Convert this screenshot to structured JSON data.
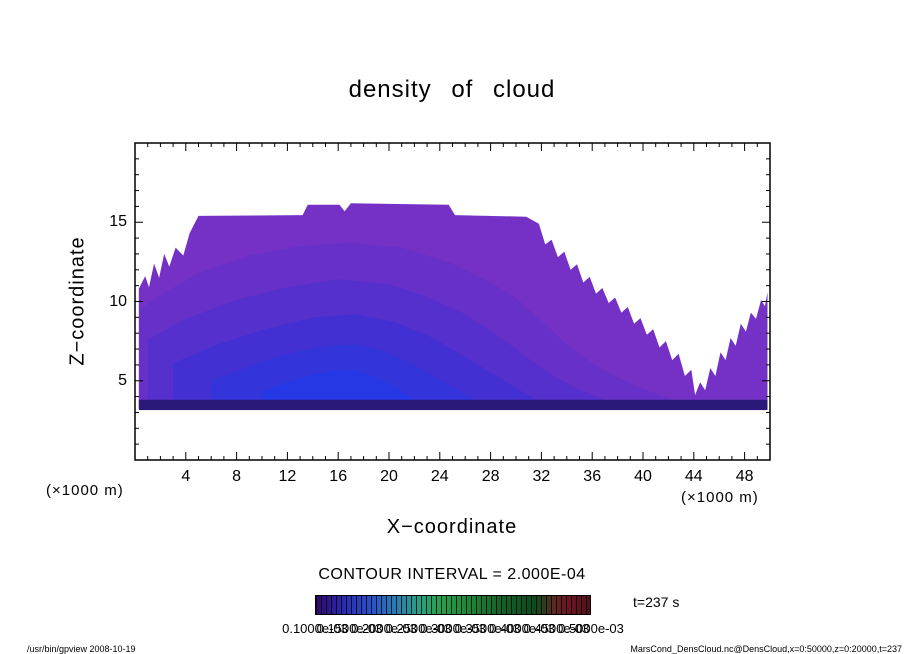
{
  "title": "density of cloud",
  "axes": {
    "x_label": "X−coordinate",
    "z_label": "Z−coordinate",
    "x_unit_left": "(×1000 m)",
    "x_unit_right": "(×1000 m)",
    "x_ticks": [
      4,
      8,
      12,
      16,
      20,
      24,
      28,
      32,
      36,
      40,
      44,
      48
    ],
    "z_ticks": [
      5,
      10,
      15
    ]
  },
  "annotations": {
    "contour_interval": "CONTOUR INTERVAL = 2.000E-04",
    "time": "t=237 s"
  },
  "footer": {
    "left": "/usr/bin/gpview  2008-10-19",
    "right": "MarsCond_DensCloud.nc@DensCloud,x=0:50000,z=0:20000,t=237"
  },
  "chart_data": {
    "type": "contour",
    "title": "density of cloud",
    "xlabel": "X−coordinate (×1000 m)",
    "ylabel": "Z−coordinate (×1000 m)",
    "x_range": [
      0,
      50
    ],
    "z_range": [
      0,
      20
    ],
    "x_major_step": 4,
    "z_major_step": 5,
    "contour_interval": 0.0002,
    "colorbar_labels": [
      "0.1000e-03",
      "0.1500e-03",
      "0.2000e-03",
      "0.2500e-03",
      "0.3000e-03",
      "0.3500e-03",
      "0.4000e-03",
      "0.4500e-03",
      "0.5000e-03"
    ],
    "colorbar_gradient": [
      [
        0.0,
        "#30086a"
      ],
      [
        0.1,
        "#2a2ab0"
      ],
      [
        0.2,
        "#2a50c8"
      ],
      [
        0.3,
        "#2a80b0"
      ],
      [
        0.38,
        "#2aa080"
      ],
      [
        0.45,
        "#28a050"
      ],
      [
        0.55,
        "#1e8838"
      ],
      [
        0.68,
        "#146028"
      ],
      [
        0.8,
        "#0c4a1c"
      ],
      [
        0.87,
        "#5a2a20"
      ],
      [
        0.92,
        "#6e1422"
      ],
      [
        1.0,
        "#50101c"
      ]
    ],
    "shade_levels": [
      {
        "level": "outline",
        "color": "#7531c5",
        "points": [
          [
            0.3,
            3.3
          ],
          [
            0.3,
            10.8
          ],
          [
            0.8,
            11.6
          ],
          [
            1.1,
            10.9
          ],
          [
            1.5,
            12.4
          ],
          [
            1.9,
            11.5
          ],
          [
            2.3,
            13.0
          ],
          [
            2.7,
            12.2
          ],
          [
            3.2,
            13.4
          ],
          [
            3.8,
            12.9
          ],
          [
            4.3,
            14.3
          ],
          [
            5.0,
            15.4
          ],
          [
            13.2,
            15.45
          ],
          [
            13.6,
            16.1
          ],
          [
            16.1,
            16.1
          ],
          [
            16.5,
            15.7
          ],
          [
            17.0,
            16.2
          ],
          [
            24.7,
            16.1
          ],
          [
            25.2,
            15.45
          ],
          [
            30.8,
            15.35
          ],
          [
            31.8,
            14.9
          ],
          [
            32.3,
            13.6
          ],
          [
            32.8,
            13.9
          ],
          [
            33.3,
            12.8
          ],
          [
            33.8,
            13.15
          ],
          [
            34.3,
            12.0
          ],
          [
            34.8,
            12.35
          ],
          [
            35.3,
            11.2
          ],
          [
            35.8,
            11.55
          ],
          [
            36.3,
            10.5
          ],
          [
            36.8,
            10.85
          ],
          [
            37.3,
            9.9
          ],
          [
            37.8,
            10.25
          ],
          [
            38.3,
            9.3
          ],
          [
            38.8,
            9.65
          ],
          [
            39.3,
            8.6
          ],
          [
            39.8,
            8.95
          ],
          [
            40.3,
            7.9
          ],
          [
            40.8,
            8.25
          ],
          [
            41.3,
            7.1
          ],
          [
            41.8,
            7.5
          ],
          [
            42.3,
            6.3
          ],
          [
            42.8,
            6.7
          ],
          [
            43.3,
            5.3
          ],
          [
            43.8,
            5.7
          ],
          [
            44.1,
            4.1
          ],
          [
            44.5,
            4.9
          ],
          [
            44.9,
            4.4
          ],
          [
            45.3,
            5.8
          ],
          [
            45.7,
            5.3
          ],
          [
            46.1,
            6.8
          ],
          [
            46.5,
            6.3
          ],
          [
            46.9,
            7.7
          ],
          [
            47.3,
            7.2
          ],
          [
            47.7,
            8.6
          ],
          [
            48.1,
            8.1
          ],
          [
            48.5,
            9.3
          ],
          [
            48.9,
            8.9
          ],
          [
            49.3,
            10.1
          ],
          [
            49.6,
            9.7
          ],
          [
            49.8,
            10.6
          ],
          [
            49.8,
            3.3
          ]
        ]
      },
      {
        "level": 2,
        "color": "#6630c9",
        "points": [
          [
            0.4,
            3.3
          ],
          [
            0.4,
            9.5
          ],
          [
            2,
            10.4
          ],
          [
            5,
            11.8
          ],
          [
            9,
            12.9
          ],
          [
            13,
            13.5
          ],
          [
            17,
            13.7
          ],
          [
            21,
            13.4
          ],
          [
            25,
            12.4
          ],
          [
            28,
            11.2
          ],
          [
            30,
            10.2
          ],
          [
            32,
            8.8
          ],
          [
            34,
            7.3
          ],
          [
            36,
            6.1
          ],
          [
            38,
            5.2
          ],
          [
            40,
            4.5
          ],
          [
            42,
            3.9
          ],
          [
            43.5,
            3.5
          ],
          [
            43.5,
            3.3
          ]
        ]
      },
      {
        "level": 3,
        "color": "#5530cd",
        "points": [
          [
            1,
            3.3
          ],
          [
            1,
            7.6
          ],
          [
            4,
            8.9
          ],
          [
            8,
            10.1
          ],
          [
            12,
            10.9
          ],
          [
            16,
            11.4
          ],
          [
            20,
            11.1
          ],
          [
            23,
            10.3
          ],
          [
            26,
            9.2
          ],
          [
            29,
            7.6
          ],
          [
            31,
            6.4
          ],
          [
            33,
            5.3
          ],
          [
            35,
            4.4
          ],
          [
            37,
            3.8
          ],
          [
            38.5,
            3.3
          ]
        ]
      },
      {
        "level": 4,
        "color": "#4330d2",
        "points": [
          [
            3,
            3.3
          ],
          [
            3,
            6.1
          ],
          [
            6.5,
            7.3
          ],
          [
            10,
            8.2
          ],
          [
            14,
            9.0
          ],
          [
            17.5,
            9.2
          ],
          [
            20.5,
            8.7
          ],
          [
            23.5,
            7.7
          ],
          [
            26,
            6.5
          ],
          [
            28.5,
            5.3
          ],
          [
            30.5,
            4.3
          ],
          [
            32,
            3.6
          ],
          [
            32,
            3.3
          ]
        ]
      },
      {
        "level": 5,
        "color": "#3334da",
        "points": [
          [
            6,
            3.3
          ],
          [
            6,
            5.0
          ],
          [
            9,
            5.9
          ],
          [
            12,
            6.7
          ],
          [
            15,
            7.2
          ],
          [
            17.5,
            7.3
          ],
          [
            19.5,
            6.9
          ],
          [
            21.5,
            6.2
          ],
          [
            23.5,
            5.3
          ],
          [
            25.5,
            4.4
          ],
          [
            27,
            3.7
          ],
          [
            27.5,
            3.3
          ]
        ]
      },
      {
        "level": 6,
        "color": "#2638e6",
        "points": [
          [
            10,
            3.3
          ],
          [
            10,
            4.3
          ],
          [
            12,
            4.9
          ],
          [
            14,
            5.4
          ],
          [
            16,
            5.7
          ],
          [
            17.5,
            5.65
          ],
          [
            19,
            5.2
          ],
          [
            20.5,
            4.6
          ],
          [
            21.8,
            3.9
          ],
          [
            22.3,
            3.3
          ]
        ]
      }
    ],
    "base_stripe": {
      "x0": 0.3,
      "x1": 49.8,
      "z0": 3.15,
      "z1": 3.8,
      "color": "#2c1878"
    }
  }
}
